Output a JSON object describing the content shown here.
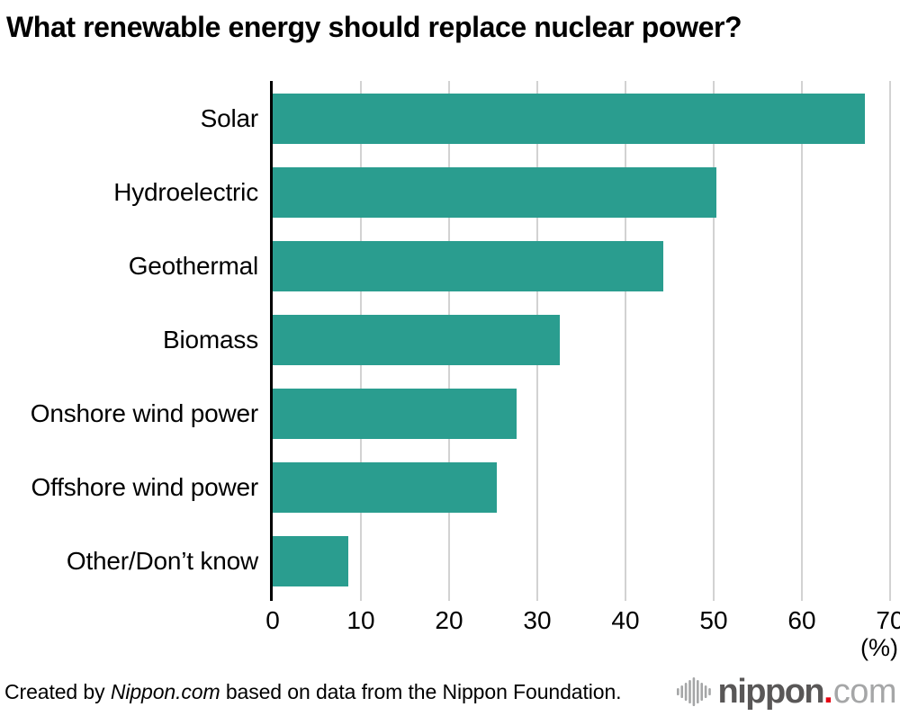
{
  "chart_data": {
    "type": "bar",
    "orientation": "horizontal",
    "title": "What renewable energy should replace nuclear power?",
    "categories": [
      "Solar",
      "Hydroelectric",
      "Geothermal",
      "Biomass",
      "Onshore wind power",
      "Offshore wind power",
      "Other/Don’t know"
    ],
    "values": [
      67.1,
      50.3,
      44.3,
      32.6,
      27.7,
      25.4,
      8.6
    ],
    "xlabel": "(%)",
    "xlim": [
      0,
      70
    ],
    "xticks": [
      0,
      10,
      20,
      30,
      40,
      50,
      60,
      70
    ],
    "grid": true,
    "legend": false,
    "bar_color": "#2a9d8f",
    "gridline_color": "#d2d2d2",
    "axis_color": "#000000"
  },
  "footer": {
    "credit_prefix": "Created by ",
    "credit_source": "Nippon.com",
    "credit_suffix": " based on data from the Nippon Foundation.",
    "logo": {
      "icon": "soundwave-icon",
      "word": "nippon",
      "dot": ".",
      "tld": "com",
      "word_color": "#595757",
      "tld_color": "#a5a6a7",
      "dot_color": "#e60012",
      "icon_color": "#a5a6a7"
    }
  }
}
